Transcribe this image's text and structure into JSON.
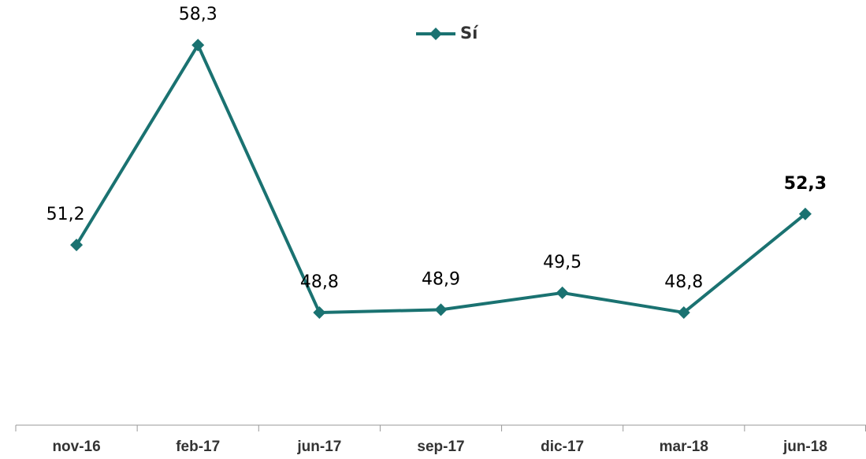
{
  "chart_data": {
    "type": "line",
    "categories": [
      "nov-16",
      "feb-17",
      "jun-17",
      "sep-17",
      "dic-17",
      "mar-18",
      "jun-18"
    ],
    "series": [
      {
        "name": "Sí",
        "color": "#1a7271",
        "values": [
          51.2,
          58.3,
          48.8,
          48.9,
          49.5,
          48.8,
          52.3
        ],
        "value_labels": [
          "51,2",
          "58,3",
          "48,8",
          "48,9",
          "49,5",
          "48,8",
          "52,3"
        ]
      }
    ],
    "ylim": [
      44.8,
      59.9
    ],
    "legend": "top"
  }
}
